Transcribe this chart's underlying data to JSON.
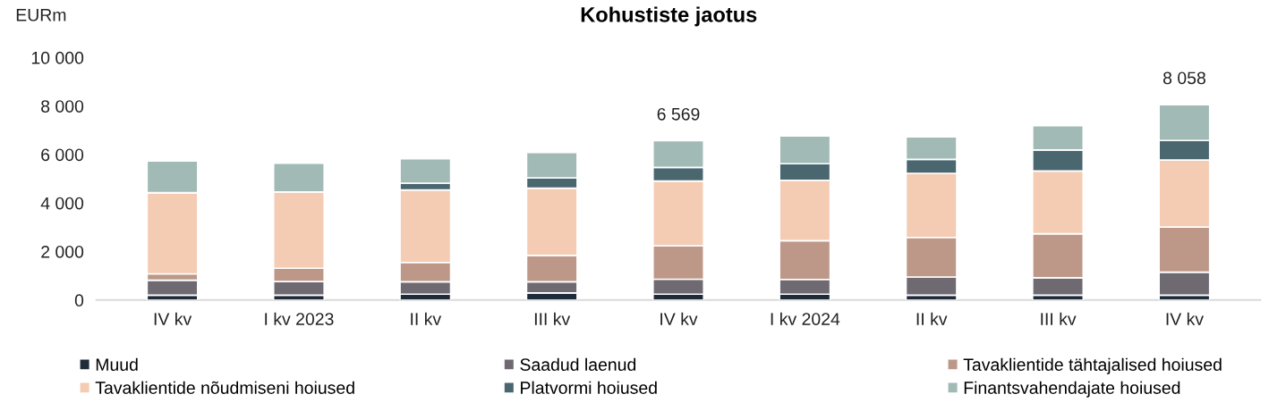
{
  "chart_data": {
    "type": "bar",
    "title": "Kohustiste jaotus",
    "ylabel": "EURm",
    "categories": [
      "IV kv",
      "I kv 2023",
      "II kv",
      "III kv",
      "IV kv",
      "I kv 2024",
      "II kv",
      "III kv",
      "IV kv"
    ],
    "stacked": true,
    "ylim": [
      0,
      10000
    ],
    "yticks": [
      0,
      {
        "value": 2000,
        "label": "2 000"
      },
      {
        "value": 4000,
        "label": "4 000"
      },
      {
        "value": 6000,
        "label": "6 000"
      },
      {
        "value": 8000,
        "label": "8 000"
      },
      {
        "value": 10000,
        "label": "10 000"
      }
    ],
    "grid": false,
    "legend": "bottom",
    "totals": [
      null,
      null,
      null,
      null,
      "6 569",
      null,
      null,
      null,
      "8 058"
    ],
    "series": [
      {
        "name": "Muud",
        "color": "#1f2a3a",
        "values": [
          200,
          200,
          240,
          290,
          240,
          240,
          200,
          200,
          200
        ]
      },
      {
        "name": "Saadud laenud",
        "color": "#6f6a72",
        "values": [
          620,
          560,
          510,
          460,
          620,
          610,
          750,
          720,
          950
        ]
      },
      {
        "name": "Tavaklientide tähtajalised hoiused",
        "color": "#bd9888",
        "values": [
          260,
          550,
          800,
          1090,
          1380,
          1600,
          1630,
          1810,
          1860
        ]
      },
      {
        "name": "Tavaklientide nõudmiseni hoiused",
        "color": "#f4cbb3",
        "values": [
          3350,
          3150,
          2990,
          2770,
          2670,
          2490,
          2640,
          2590,
          2760
        ]
      },
      {
        "name": "Platvormi hoiused",
        "color": "#4a6770",
        "values": [
          0,
          0,
          280,
          430,
          560,
          680,
          580,
          870,
          810
        ]
      },
      {
        "name": "Finantsvahendajate hoiused",
        "color": "#a1bab6",
        "values": [
          1300,
          1180,
          1010,
          1040,
          1100,
          1150,
          930,
          1000,
          1480
        ]
      }
    ]
  }
}
